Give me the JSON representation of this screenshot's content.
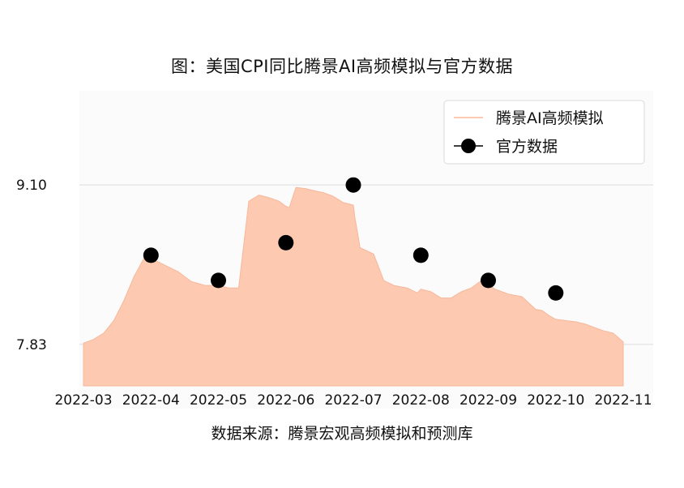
{
  "chart_data": {
    "type": "area",
    "title": "图：美国CPI同比腾景AI高频模拟与官方数据",
    "source": "数据来源：腾景宏观高频模拟和预测库",
    "x_ticks": [
      "2022-03",
      "2022-04",
      "2022-05",
      "2022-06",
      "2022-07",
      "2022-08",
      "2022-09",
      "2022-10",
      "2022-11"
    ],
    "y_ticks": [
      "7.83",
      "9.10"
    ],
    "y_tick_values": [
      7.83,
      9.1
    ],
    "ylim": [
      7.5,
      9.85
    ],
    "grid": "horizontal",
    "legend_position": "top-right",
    "colors": {
      "area": "#fdc9b0",
      "area_line": "#f6b89b",
      "official": "#000000",
      "grid": "#dcdcdc"
    },
    "series": [
      {
        "name": "腾景AI高频模拟",
        "kind": "area",
        "x": [
          0,
          0.15,
          0.3,
          0.45,
          0.6,
          0.75,
          0.9,
          1.0,
          1.1,
          1.25,
          1.4,
          1.6,
          1.8,
          2.0,
          2.15,
          2.3,
          2.45,
          2.6,
          2.75,
          2.9,
          3.0,
          3.05,
          3.15,
          3.3,
          3.45,
          3.55,
          3.7,
          3.85,
          4.0,
          4.02,
          4.1,
          4.3,
          4.45,
          4.6,
          4.8,
          4.95,
          5.0,
          5.15,
          5.3,
          5.45,
          5.6,
          5.75,
          5.9,
          6.0,
          6.02,
          6.1,
          6.3,
          6.5,
          6.7,
          6.8,
          6.9,
          7.0,
          7.15,
          7.3,
          7.45,
          7.55,
          7.7,
          7.85,
          8.0
        ],
        "values": [
          7.84,
          7.87,
          7.92,
          8.02,
          8.18,
          8.37,
          8.52,
          8.5,
          8.49,
          8.45,
          8.41,
          8.33,
          8.3,
          8.3,
          8.28,
          8.28,
          8.97,
          9.02,
          9.0,
          8.97,
          8.93,
          8.92,
          9.08,
          9.07,
          9.05,
          9.04,
          9.01,
          8.96,
          8.94,
          8.85,
          8.6,
          8.55,
          8.34,
          8.3,
          8.28,
          8.24,
          8.27,
          8.25,
          8.2,
          8.2,
          8.25,
          8.28,
          8.34,
          8.32,
          8.3,
          8.27,
          8.23,
          8.21,
          8.11,
          8.1,
          8.06,
          8.03,
          8.02,
          8.01,
          7.99,
          7.97,
          7.94,
          7.92,
          7.85
        ]
      },
      {
        "name": "官方数据",
        "kind": "scatter",
        "x": [
          1,
          2,
          3,
          4,
          5,
          6,
          7
        ],
        "values": [
          8.54,
          8.34,
          8.64,
          9.1,
          8.54,
          8.34,
          8.24
        ]
      }
    ]
  }
}
